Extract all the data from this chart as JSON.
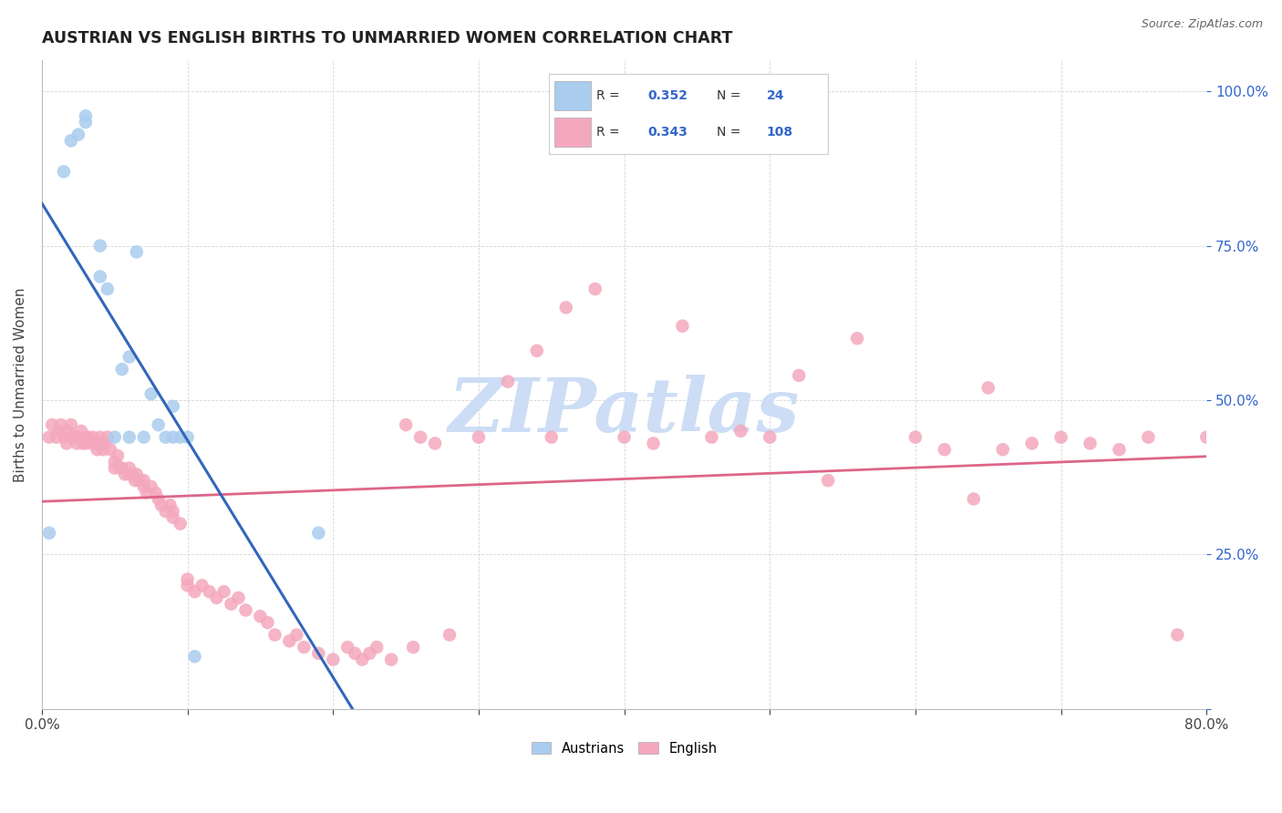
{
  "title": "AUSTRIAN VS ENGLISH BIRTHS TO UNMARRIED WOMEN CORRELATION CHART",
  "source": "Source: ZipAtlas.com",
  "ylabel": "Births to Unmarried Women",
  "xlim": [
    0.0,
    0.8
  ],
  "ylim": [
    0.0,
    1.05
  ],
  "blue_color": "#aaccee",
  "pink_color": "#f4a8be",
  "blue_line_color": "#3366bb",
  "pink_line_color": "#dd6688",
  "watermark": "ZIPatlas",
  "watermark_color": "#ccddf5",
  "r_blue": "0.352",
  "n_blue": "24",
  "r_pink": "0.343",
  "n_pink": "108",
  "right_tick_color": "#3366cc",
  "title_fontsize": 12.5,
  "source_fontsize": 9,
  "austrians_x": [
    0.005,
    0.015,
    0.02,
    0.025,
    0.03,
    0.03,
    0.04,
    0.04,
    0.045,
    0.05,
    0.055,
    0.06,
    0.06,
    0.065,
    0.07,
    0.075,
    0.08,
    0.085,
    0.09,
    0.09,
    0.095,
    0.1,
    0.105,
    0.19
  ],
  "austrians_y": [
    0.285,
    0.87,
    0.92,
    0.93,
    0.95,
    0.96,
    0.7,
    0.75,
    0.68,
    0.44,
    0.55,
    0.44,
    0.57,
    0.74,
    0.44,
    0.51,
    0.46,
    0.44,
    0.44,
    0.49,
    0.44,
    0.44,
    0.085,
    0.285
  ],
  "english_x": [
    0.005,
    0.007,
    0.01,
    0.012,
    0.013,
    0.015,
    0.017,
    0.018,
    0.02,
    0.02,
    0.022,
    0.024,
    0.025,
    0.027,
    0.028,
    0.03,
    0.03,
    0.032,
    0.034,
    0.035,
    0.037,
    0.038,
    0.04,
    0.04,
    0.042,
    0.043,
    0.045,
    0.047,
    0.05,
    0.05,
    0.052,
    0.054,
    0.055,
    0.057,
    0.06,
    0.06,
    0.062,
    0.064,
    0.065,
    0.067,
    0.07,
    0.07,
    0.072,
    0.075,
    0.078,
    0.08,
    0.082,
    0.085,
    0.088,
    0.09,
    0.09,
    0.095,
    0.1,
    0.1,
    0.105,
    0.11,
    0.115,
    0.12,
    0.125,
    0.13,
    0.135,
    0.14,
    0.15,
    0.155,
    0.16,
    0.17,
    0.175,
    0.18,
    0.19,
    0.2,
    0.21,
    0.215,
    0.22,
    0.225,
    0.23,
    0.24,
    0.25,
    0.255,
    0.26,
    0.27,
    0.28,
    0.3,
    0.32,
    0.34,
    0.35,
    0.36,
    0.38,
    0.4,
    0.42,
    0.44,
    0.46,
    0.48,
    0.5,
    0.52,
    0.54,
    0.56,
    0.6,
    0.62,
    0.64,
    0.65,
    0.66,
    0.68,
    0.7,
    0.72,
    0.74,
    0.76,
    0.78,
    0.8
  ],
  "english_y": [
    0.44,
    0.46,
    0.44,
    0.45,
    0.46,
    0.44,
    0.43,
    0.45,
    0.44,
    0.46,
    0.44,
    0.43,
    0.44,
    0.45,
    0.43,
    0.44,
    0.43,
    0.44,
    0.43,
    0.44,
    0.43,
    0.42,
    0.43,
    0.44,
    0.42,
    0.43,
    0.44,
    0.42,
    0.39,
    0.4,
    0.41,
    0.39,
    0.39,
    0.38,
    0.38,
    0.39,
    0.38,
    0.37,
    0.38,
    0.37,
    0.36,
    0.37,
    0.35,
    0.36,
    0.35,
    0.34,
    0.33,
    0.32,
    0.33,
    0.31,
    0.32,
    0.3,
    0.2,
    0.21,
    0.19,
    0.2,
    0.19,
    0.18,
    0.19,
    0.17,
    0.18,
    0.16,
    0.15,
    0.14,
    0.12,
    0.11,
    0.12,
    0.1,
    0.09,
    0.08,
    0.1,
    0.09,
    0.08,
    0.09,
    0.1,
    0.08,
    0.46,
    0.1,
    0.44,
    0.43,
    0.12,
    0.44,
    0.53,
    0.58,
    0.44,
    0.65,
    0.68,
    0.44,
    0.43,
    0.62,
    0.44,
    0.45,
    0.44,
    0.54,
    0.37,
    0.6,
    0.44,
    0.42,
    0.34,
    0.52,
    0.42,
    0.43,
    0.44,
    0.43,
    0.42,
    0.44,
    0.12,
    0.44
  ]
}
